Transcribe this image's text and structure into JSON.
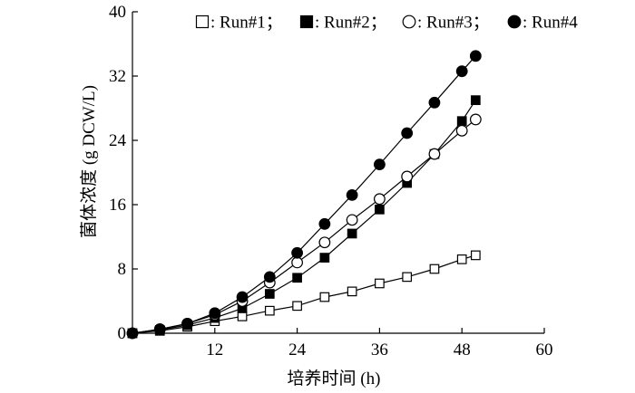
{
  "chart_data": {
    "type": "line",
    "title": "",
    "xlabel": "培养时间 (h)",
    "ylabel": "菌体浓度 (g DCW/L)",
    "xlim": [
      0,
      60
    ],
    "ylim": [
      0,
      40
    ],
    "xticks": [
      12,
      24,
      36,
      48,
      60
    ],
    "yticks": [
      0,
      8,
      16,
      24,
      32,
      40
    ],
    "grid": false,
    "legend_position": "top",
    "series": [
      {
        "name": "Run#1",
        "legend_label": ": Run#1；",
        "marker": "square-open",
        "x": [
          0,
          4,
          8,
          12,
          16,
          20,
          24,
          28,
          32,
          36,
          40,
          44,
          48,
          50
        ],
        "y": [
          0,
          0.3,
          0.8,
          1.5,
          2.1,
          2.8,
          3.4,
          4.5,
          5.2,
          6.2,
          7.0,
          8.0,
          9.2,
          9.7
        ]
      },
      {
        "name": "Run#2",
        "legend_label": ": Run#2；",
        "marker": "square-filled",
        "x": [
          0,
          4,
          8,
          12,
          16,
          20,
          24,
          28,
          32,
          36,
          40,
          44,
          48,
          50
        ],
        "y": [
          0,
          0.4,
          1.0,
          1.9,
          3.1,
          4.9,
          6.9,
          9.4,
          12.4,
          15.4,
          18.7,
          22.3,
          26.4,
          29.0
        ]
      },
      {
        "name": "Run#3",
        "legend_label": ": Run#3；",
        "marker": "circle-open",
        "x": [
          0,
          4,
          8,
          12,
          16,
          20,
          24,
          28,
          32,
          36,
          40,
          44,
          48,
          50
        ],
        "y": [
          0,
          0.5,
          1.2,
          2.3,
          4.0,
          6.3,
          8.8,
          11.3,
          14.1,
          16.7,
          19.5,
          22.3,
          25.2,
          26.6
        ]
      },
      {
        "name": "Run#4",
        "legend_label": ": Run#4",
        "marker": "circle-filled",
        "x": [
          0,
          4,
          8,
          12,
          16,
          20,
          24,
          28,
          32,
          36,
          40,
          44,
          48,
          50
        ],
        "y": [
          0,
          0.5,
          1.2,
          2.5,
          4.5,
          7.0,
          10.0,
          13.6,
          17.2,
          21.0,
          24.9,
          28.7,
          32.6,
          34.5
        ]
      }
    ]
  }
}
